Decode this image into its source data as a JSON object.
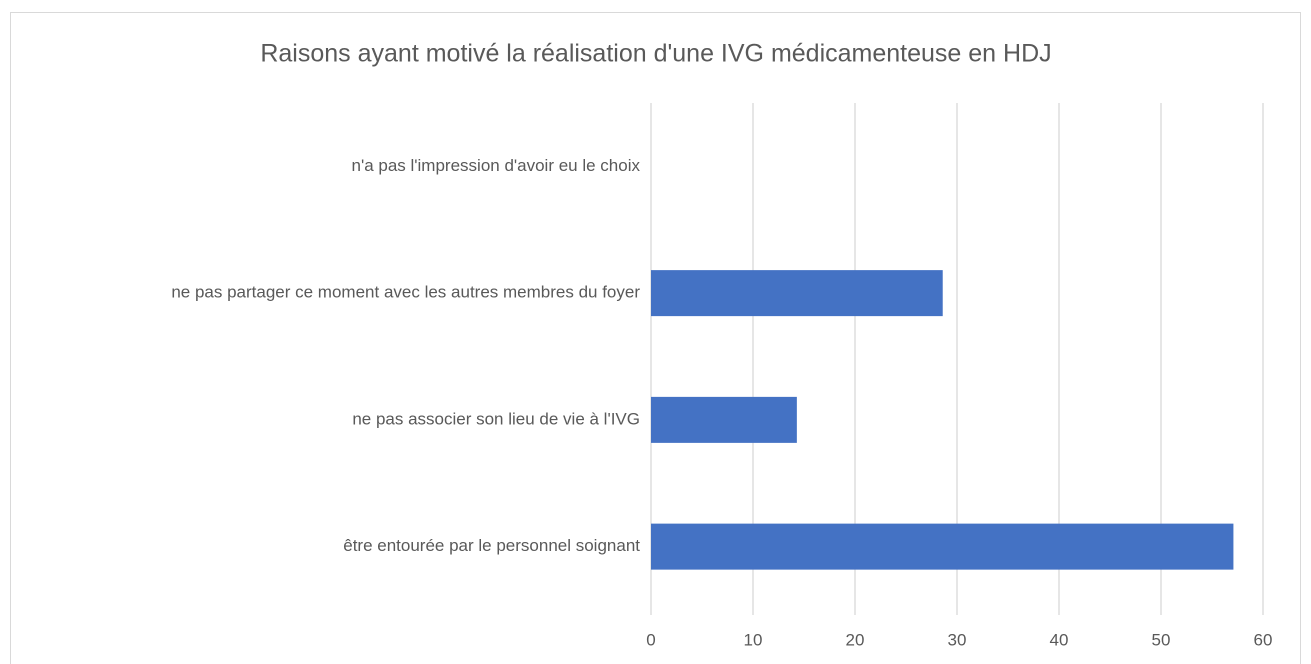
{
  "chart_data": {
    "type": "bar",
    "orientation": "horizontal",
    "title": "Raisons ayant motivé la réalisation d'une IVG médicamenteuse en HDJ",
    "categories": [
      "n'a pas l'impression d'avoir eu le choix",
      "ne pas partager ce moment avec les autres membres du foyer",
      "ne pas associer son lieu de vie à l'IVG",
      "être entourée par le personnel soignant"
    ],
    "values": [
      0,
      28.6,
      14.3,
      57.1
    ],
    "color": "#4472c4",
    "xlim": [
      0,
      60
    ],
    "xticks": [
      0,
      10,
      20,
      30,
      40,
      50,
      60
    ],
    "grid": true
  }
}
